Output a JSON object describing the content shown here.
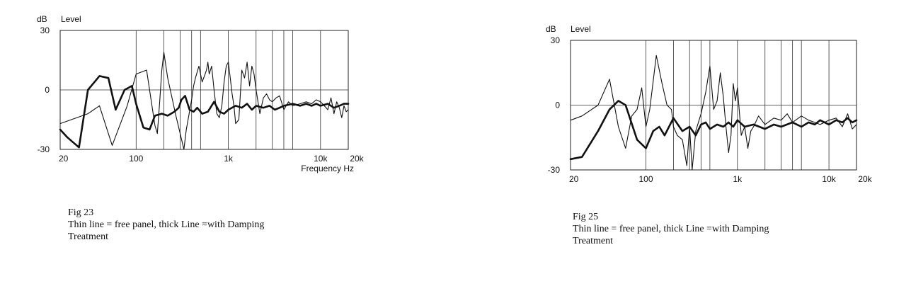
{
  "chart_data": [
    {
      "type": "line",
      "figure_label": "Fig 23",
      "caption_line1": "Thin line = free panel, thick Line =with Damping",
      "caption_line2": "Treatment",
      "ylabel_unit": "dB",
      "ylabel": "Level",
      "xlabel": "Frequency Hz",
      "xscale": "log",
      "xlim": [
        15,
        20000
      ],
      "ylim": [
        -30,
        30
      ],
      "y_ticks": [
        {
          "v": 30,
          "label": "30"
        },
        {
          "v": 0,
          "label": "0"
        },
        {
          "v": -30,
          "label": "-30"
        }
      ],
      "x_ticks": [
        {
          "v": 20,
          "label": "20"
        },
        {
          "v": 100,
          "label": "100"
        },
        {
          "v": 1000,
          "label": "1k"
        },
        {
          "v": 10000,
          "label": "10k"
        },
        {
          "v": 20000,
          "label": "20k"
        }
      ],
      "grid": true,
      "gridlines_x": [
        100,
        200,
        300,
        400,
        500,
        1000,
        2000,
        3000,
        4000,
        5000,
        10000
      ],
      "series": [
        {
          "style": "thin",
          "x": [
            15,
            30,
            40,
            55,
            80,
            100,
            130,
            160,
            170,
            180,
            190,
            200,
            220,
            270,
            330,
            350,
            400,
            420,
            440,
            480,
            520,
            560,
            580,
            600,
            620,
            640,
            660,
            700,
            750,
            800,
            850,
            900,
            950,
            1000,
            1050,
            1100,
            1150,
            1200,
            1300,
            1400,
            1500,
            1600,
            1700,
            1800,
            1900,
            2000,
            2200,
            2400,
            2600,
            2800,
            3000,
            3300,
            3600,
            4000,
            4500,
            5000,
            6000,
            7000,
            8000,
            9000,
            10000,
            11000,
            12000,
            13000,
            14000,
            15000,
            16000,
            17000,
            18000,
            19000,
            20000
          ],
          "y": [
            -17,
            -12,
            -8,
            -28,
            -8,
            8,
            10,
            -18,
            -22,
            -6,
            10,
            19,
            6,
            -13,
            -30,
            -20,
            -5,
            2,
            6,
            12,
            4,
            8,
            10,
            14,
            8,
            10,
            12,
            0,
            -12,
            -14,
            -8,
            4,
            12,
            14,
            6,
            -2,
            -8,
            -17,
            -15,
            10,
            6,
            14,
            2,
            12,
            8,
            0,
            -12,
            -4,
            -2,
            -5,
            -6,
            -4,
            -3,
            -10,
            -6,
            -8,
            -7,
            -6,
            -7,
            -5,
            -6,
            -8,
            -10,
            -4,
            -12,
            -6,
            -9,
            -14,
            -8,
            -11,
            -10
          ]
        },
        {
          "style": "thick",
          "x": [
            15,
            18,
            24,
            30,
            40,
            50,
            60,
            75,
            90,
            100,
            120,
            140,
            160,
            190,
            220,
            260,
            290,
            310,
            340,
            380,
            420,
            460,
            520,
            600,
            700,
            800,
            900,
            1000,
            1200,
            1400,
            1600,
            1800,
            2000,
            2400,
            2800,
            3200,
            3600,
            4000,
            5000,
            6000,
            7000,
            8000,
            9000,
            10000,
            12000,
            14000,
            16000,
            18000,
            20000
          ],
          "y": [
            -20,
            -24,
            -29,
            0,
            7,
            6,
            -10,
            0,
            2,
            -7,
            -19,
            -20,
            -13,
            -12,
            -13,
            -11,
            -9,
            -5,
            -3,
            -10,
            -11,
            -9,
            -12,
            -11,
            -6,
            -11,
            -12,
            -10,
            -8,
            -9,
            -7,
            -10,
            -8,
            -9,
            -8,
            -10,
            -9,
            -8,
            -7,
            -8,
            -7,
            -8,
            -7,
            -8,
            -7,
            -9,
            -8,
            -7,
            -7
          ]
        }
      ]
    },
    {
      "type": "line",
      "figure_label": "Fig 25",
      "caption_line1": "Thin line = free panel, thick Line =with Damping",
      "caption_line2": "Treatment",
      "ylabel_unit": "dB",
      "ylabel": "Level",
      "xlabel": "",
      "xscale": "log",
      "xlim": [
        15,
        20000
      ],
      "ylim": [
        -30,
        30
      ],
      "y_ticks": [
        {
          "v": 30,
          "label": "30"
        },
        {
          "v": 0,
          "label": "0"
        },
        {
          "v": -30,
          "label": "-30"
        }
      ],
      "x_ticks": [
        {
          "v": 20,
          "label": "20"
        },
        {
          "v": 100,
          "label": "100"
        },
        {
          "v": 1000,
          "label": "1k"
        },
        {
          "v": 10000,
          "label": "10k"
        },
        {
          "v": 20000,
          "label": "20k"
        }
      ],
      "grid": true,
      "gridlines_x": [
        100,
        200,
        300,
        400,
        500,
        1000,
        2000,
        3000,
        4000,
        5000,
        10000
      ],
      "series": [
        {
          "style": "thin",
          "x": [
            15,
            20,
            30,
            40,
            50,
            60,
            70,
            80,
            90,
            100,
            110,
            130,
            150,
            170,
            190,
            200,
            220,
            250,
            280,
            300,
            320,
            350,
            400,
            450,
            500,
            550,
            600,
            650,
            700,
            750,
            800,
            850,
            900,
            950,
            1000,
            1100,
            1200,
            1300,
            1400,
            1500,
            1700,
            2000,
            2500,
            3000,
            3500,
            4000,
            5000,
            6000,
            7000,
            8000,
            10000,
            12000,
            14000,
            16000,
            18000,
            20000
          ],
          "y": [
            -7,
            -5,
            0,
            12,
            -10,
            -20,
            -5,
            -2,
            8,
            -10,
            -2,
            23,
            10,
            0,
            -2,
            -10,
            -14,
            -16,
            -28,
            -10,
            -30,
            -12,
            -4,
            6,
            18,
            -2,
            2,
            15,
            4,
            -10,
            -22,
            -14,
            10,
            2,
            8,
            -14,
            -10,
            -20,
            -12,
            -10,
            -5,
            -9,
            -6,
            -7,
            -4,
            -8,
            -5,
            -7,
            -8,
            -9,
            -7,
            -6,
            -10,
            -4,
            -11,
            -9
          ]
        },
        {
          "style": "thick",
          "x": [
            15,
            20,
            30,
            40,
            50,
            60,
            80,
            100,
            120,
            140,
            160,
            200,
            250,
            300,
            350,
            400,
            450,
            500,
            600,
            700,
            800,
            900,
            1000,
            1200,
            1500,
            2000,
            2500,
            3000,
            4000,
            5000,
            6000,
            7000,
            8000,
            10000,
            12000,
            14000,
            16000,
            18000,
            20000
          ],
          "y": [
            -25,
            -24,
            -12,
            -2,
            2,
            0,
            -16,
            -20,
            -12,
            -10,
            -14,
            -6,
            -12,
            -10,
            -14,
            -9,
            -8,
            -11,
            -9,
            -10,
            -8,
            -10,
            -7,
            -10,
            -9,
            -11,
            -9,
            -10,
            -8,
            -10,
            -8,
            -9,
            -7,
            -9,
            -7,
            -8,
            -6,
            -8,
            -7
          ]
        }
      ]
    }
  ]
}
